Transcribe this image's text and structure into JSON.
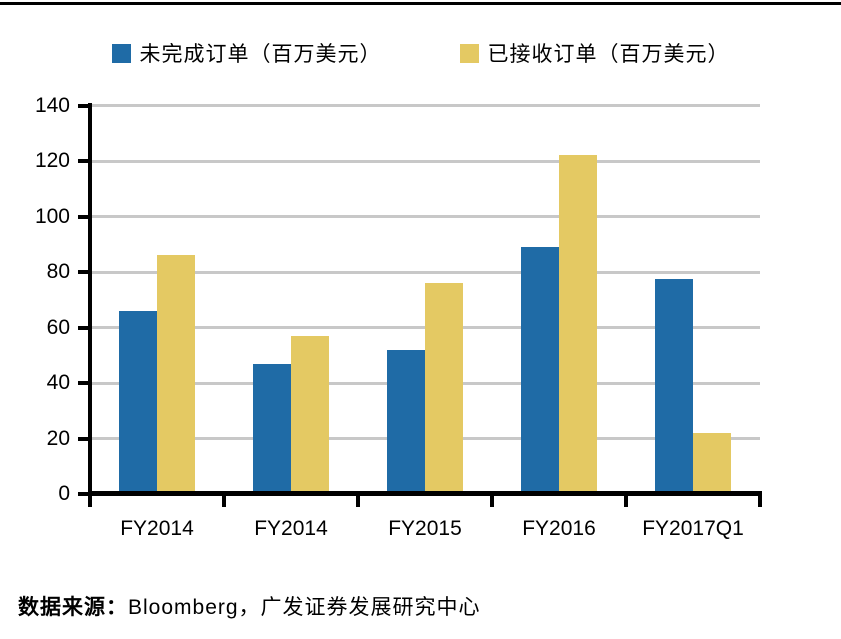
{
  "legend": {
    "items": [
      {
        "label": "未完成订单（百万美元）",
        "color": "#1F6BA6"
      },
      {
        "label": "已接收订单（百万美元）",
        "color": "#E4C963"
      }
    ]
  },
  "chart_data": {
    "type": "bar",
    "categories": [
      "FY2014",
      "FY2014",
      "FY2015",
      "FY2016",
      "FY2017Q1"
    ],
    "series": [
      {
        "name": "未完成订单（百万美元）",
        "color": "#1F6BA6",
        "values": [
          66,
          47,
          52,
          89,
          77.5
        ]
      },
      {
        "name": "已接收订单（百万美元）",
        "color": "#E4C963",
        "values": [
          86,
          57,
          76,
          122,
          22
        ]
      }
    ],
    "title": "",
    "xlabel": "",
    "ylabel": "",
    "ylim": [
      0,
      140
    ],
    "yticks": [
      0,
      20,
      40,
      60,
      80,
      100,
      120,
      140
    ],
    "grid": "horizontal",
    "gridline_color": "#C8C8C8",
    "legend_position": "top"
  },
  "footer": {
    "source_label": "数据来源：",
    "source_text": "Bloomberg，广发证券发展研究中心"
  }
}
